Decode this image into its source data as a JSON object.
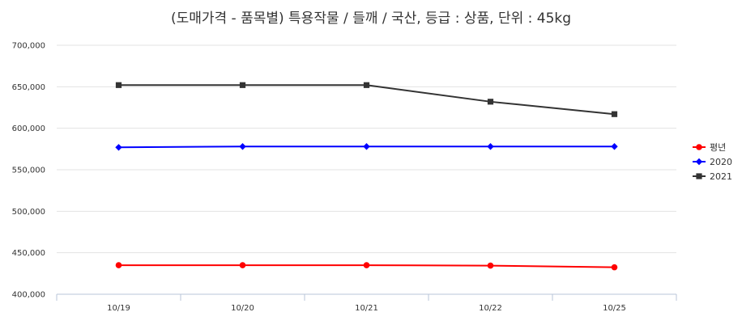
{
  "chart_data": {
    "type": "line",
    "title": "(도매가격 - 품목별) 특용작물 / 들깨 / 국산, 등급 : 상품, 단위 : 45kg",
    "xlabel": "",
    "ylabel": "",
    "categories": [
      "10/19",
      "10/20",
      "10/21",
      "10/22",
      "10/25"
    ],
    "ylim": [
      400000,
      700000
    ],
    "yticks": [
      400000,
      450000,
      500000,
      550000,
      600000,
      650000,
      700000
    ],
    "ytick_labels": [
      "400,000",
      "450,000",
      "500,000",
      "550,000",
      "600,000",
      "650,000",
      "700,000"
    ],
    "grid": true,
    "legend_position": "right",
    "series": [
      {
        "name": "평년",
        "color": "#ff0000",
        "marker": "circle",
        "values": [
          435000,
          435000,
          435000,
          434500,
          432500
        ]
      },
      {
        "name": "2020",
        "color": "#0000ff",
        "marker": "diamond",
        "values": [
          577000,
          578000,
          578000,
          578000,
          578000
        ]
      },
      {
        "name": "2021",
        "color": "#333333",
        "marker": "square",
        "values": [
          652000,
          652000,
          652000,
          632000,
          617000
        ]
      }
    ]
  }
}
